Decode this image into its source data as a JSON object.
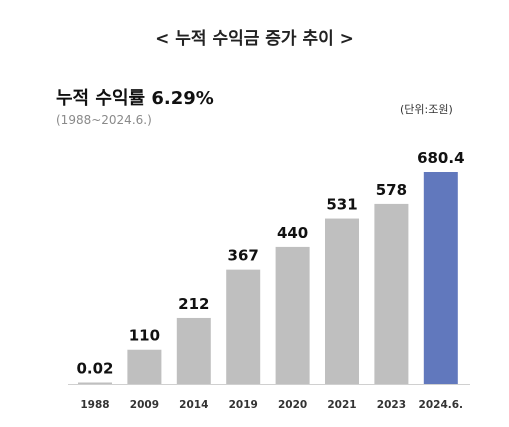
{
  "title": "< 누적 수익금 증가 추이 >",
  "subtitle": "누적  수익률 6.29%",
  "period": "(1988~2024.6.)",
  "unit": "(단위:조원)",
  "colors": {
    "bar": "#bfbfbf",
    "highlight": "#6178bd",
    "axis": "#d0d0d0"
  },
  "chart_data": {
    "type": "bar",
    "title": "누적 수익금 증가 추이",
    "xlabel": "",
    "ylabel": "",
    "unit": "조원",
    "categories": [
      "1988",
      "2009",
      "2014",
      "2019",
      "2020",
      "2021",
      "2023",
      "2024.6."
    ],
    "values": [
      0.02,
      110,
      212,
      367,
      440,
      531,
      578,
      680.4
    ],
    "data_labels": [
      "0.02",
      "110",
      "212",
      "367",
      "440",
      "531",
      "578",
      "680.4"
    ],
    "highlight_index": 7,
    "ylim": [
      0,
      680.4
    ],
    "grid": false,
    "legend": "none"
  }
}
